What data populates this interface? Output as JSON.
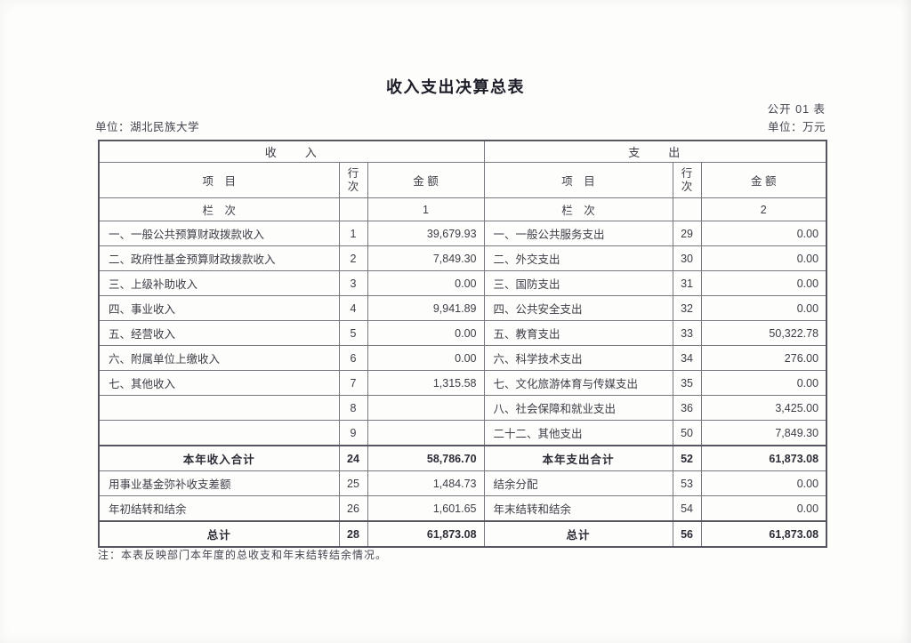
{
  "page": {
    "title": "收入支出决算总表",
    "table_code": "公开 01 表",
    "org_unit": "单位：湖北民族大学",
    "unit_of_measure": "单位：万元",
    "note": "注：本表反映部门本年度的总收支和年末结转结余情况。"
  },
  "table": {
    "income_header": "收　　入",
    "expense_header": "支　　出",
    "col_item": "项　目",
    "col_line": "行次",
    "col_amount": "金 额",
    "col_index_label": "栏　次",
    "income_col_index": "1",
    "expense_col_index": "2",
    "income_rows": [
      {
        "item": "一、一般公共预算财政拨款收入",
        "line": "1",
        "amount": "39,679.93"
      },
      {
        "item": "二、政府性基金预算财政拨款收入",
        "line": "2",
        "amount": "7,849.30"
      },
      {
        "item": "三、上级补助收入",
        "line": "3",
        "amount": "0.00"
      },
      {
        "item": "四、事业收入",
        "line": "4",
        "amount": "9,941.89"
      },
      {
        "item": "五、经营收入",
        "line": "5",
        "amount": "0.00"
      },
      {
        "item": "六、附属单位上缴收入",
        "line": "6",
        "amount": "0.00"
      },
      {
        "item": "七、其他收入",
        "line": "7",
        "amount": "1,315.58"
      },
      {
        "item": "",
        "line": "8",
        "amount": ""
      },
      {
        "item": "",
        "line": "9",
        "amount": ""
      },
      {
        "item": "本年收入合计",
        "line": "24",
        "amount": "58,786.70",
        "total": true
      },
      {
        "item": "用事业基金弥补收支差额",
        "line": "25",
        "amount": "1,484.73"
      },
      {
        "item": "年初结转和结余",
        "line": "26",
        "amount": "1,601.65"
      },
      {
        "item": "总计",
        "line": "28",
        "amount": "61,873.08",
        "total": true
      }
    ],
    "expense_rows": [
      {
        "item": "一、一般公共服务支出",
        "line": "29",
        "amount": "0.00"
      },
      {
        "item": "二、外交支出",
        "line": "30",
        "amount": "0.00"
      },
      {
        "item": "三、国防支出",
        "line": "31",
        "amount": "0.00"
      },
      {
        "item": "四、公共安全支出",
        "line": "32",
        "amount": "0.00"
      },
      {
        "item": "五、教育支出",
        "line": "33",
        "amount": "50,322.78"
      },
      {
        "item": "六、科学技术支出",
        "line": "34",
        "amount": "276.00"
      },
      {
        "item": "七、文化旅游体育与传媒支出",
        "line": "35",
        "amount": "0.00"
      },
      {
        "item": "八、社会保障和就业支出",
        "line": "36",
        "amount": "3,425.00"
      },
      {
        "item": "二十二、其他支出",
        "line": "50",
        "amount": "7,849.30"
      },
      {
        "item": "本年支出合计",
        "line": "52",
        "amount": "61,873.08",
        "total": true
      },
      {
        "item": "结余分配",
        "line": "53",
        "amount": "0.00"
      },
      {
        "item": "年末结转和结余",
        "line": "54",
        "amount": "0.00"
      },
      {
        "item": "总计",
        "line": "56",
        "amount": "61,873.08",
        "total": true
      }
    ]
  }
}
